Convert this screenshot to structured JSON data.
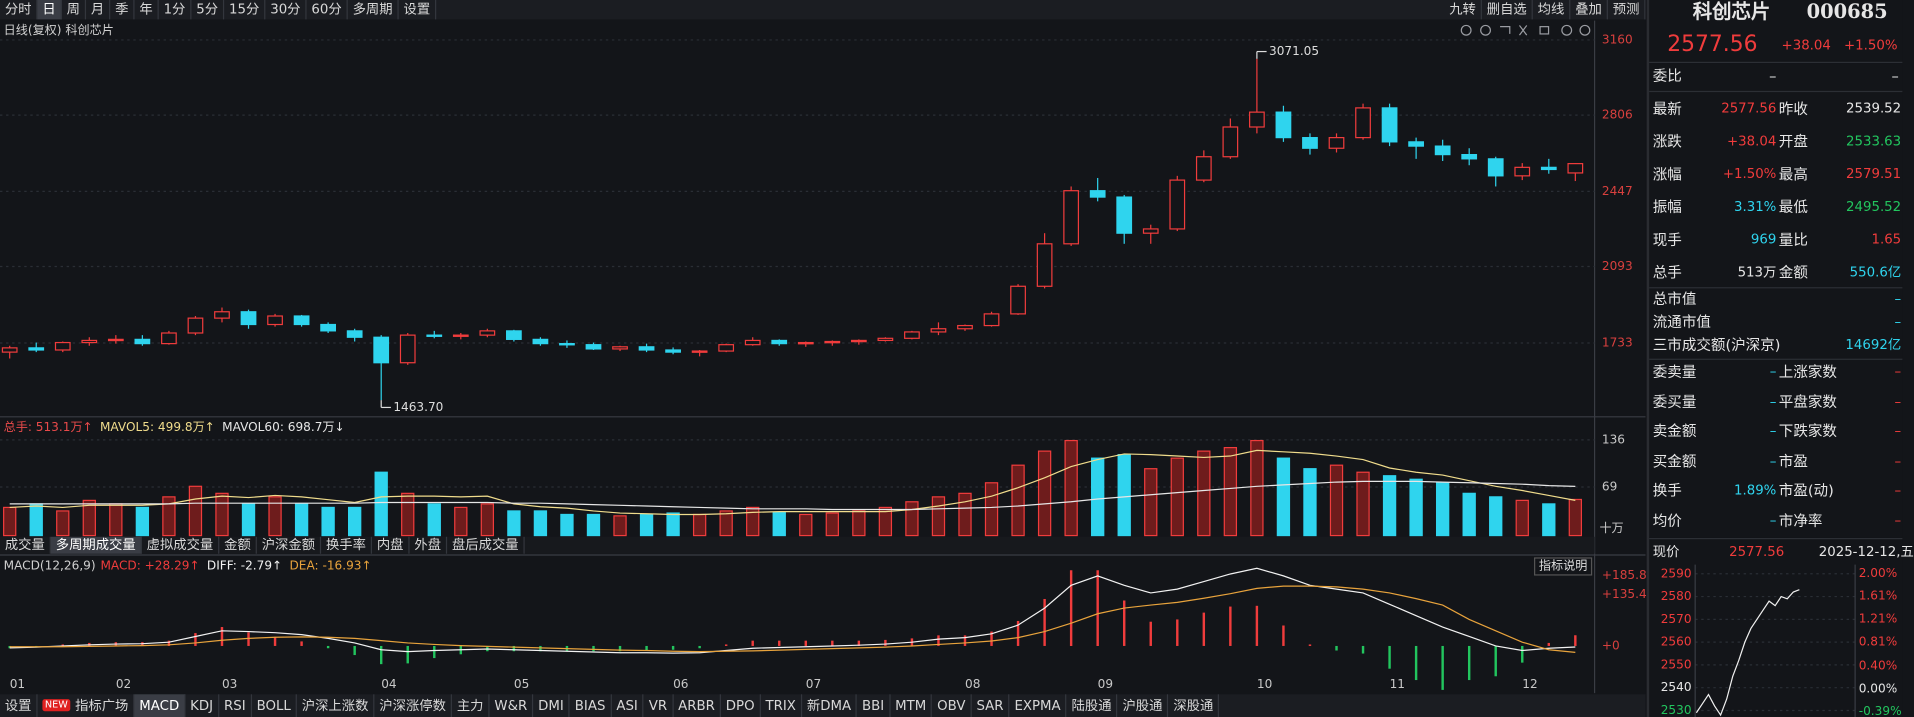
{
  "toolbar": {
    "periods": [
      "分时",
      "日",
      "周",
      "月",
      "季",
      "年",
      "1分",
      "5分",
      "15分",
      "30分",
      "60分",
      "多周期",
      "设置"
    ],
    "tools": [
      "九转",
      "删自选",
      "均线",
      "叠加",
      "预测"
    ]
  },
  "volume_tabs": [
    "成交量",
    "多周期成交量",
    "虚拟成交量",
    "金额",
    "沪深金额",
    "换手率",
    "内盘",
    "外盘",
    "盘后成交量"
  ],
  "indicator_help": "指标说明",
  "indicator_badge": "NEW",
  "indicator_tabs": [
    "设置",
    "指标广场",
    "MACD",
    "KDJ",
    "RSI",
    "BOLL",
    "沪深上涨数",
    "沪深涨停数",
    "主力",
    "W&R",
    "DMI",
    "BIAS",
    "ASI",
    "VR",
    "ARBR",
    "DPO",
    "TRIX",
    "新DMA",
    "BBI",
    "MTM",
    "OBV",
    "SAR",
    "EXPMA",
    "陆股通",
    "沪股通",
    "深股通"
  ],
  "chart_data": [
    {
      "type": "candlestick",
      "title": "日线(复权) 科创芯片",
      "up_color": "#f03c3c",
      "down_color": "#2fd4ee",
      "tick_color": "#d8403e",
      "grid": true,
      "ylim": [
        1391,
        3251
      ],
      "yticks": [
        3160,
        2806,
        2447,
        2093,
        1733
      ],
      "annotations": [
        {
          "label": "3071.05",
          "value": 3071.05
        },
        {
          "label": "1463.70",
          "value": 1463.7
        }
      ],
      "candles": [
        [
          1690,
          1720,
          1660,
          1710
        ],
        [
          1710,
          1735,
          1690,
          1700
        ],
        [
          1700,
          1740,
          1690,
          1735
        ],
        [
          1735,
          1760,
          1720,
          1745
        ],
        [
          1745,
          1770,
          1730,
          1750
        ],
        [
          1750,
          1770,
          1720,
          1730
        ],
        [
          1730,
          1790,
          1725,
          1780
        ],
        [
          1780,
          1860,
          1770,
          1850
        ],
        [
          1850,
          1900,
          1830,
          1880
        ],
        [
          1880,
          1890,
          1800,
          1820
        ],
        [
          1820,
          1870,
          1810,
          1860
        ],
        [
          1860,
          1865,
          1810,
          1820
        ],
        [
          1820,
          1830,
          1780,
          1790
        ],
        [
          1790,
          1800,
          1740,
          1760
        ],
        [
          1760,
          1770,
          1463.7,
          1640
        ],
        [
          1640,
          1780,
          1630,
          1770
        ],
        [
          1770,
          1790,
          1755,
          1765
        ],
        [
          1765,
          1780,
          1750,
          1770
        ],
        [
          1770,
          1800,
          1760,
          1790
        ],
        [
          1790,
          1795,
          1740,
          1750
        ],
        [
          1750,
          1760,
          1720,
          1730
        ],
        [
          1730,
          1745,
          1710,
          1725
        ],
        [
          1725,
          1735,
          1700,
          1705
        ],
        [
          1705,
          1720,
          1695,
          1715
        ],
        [
          1715,
          1730,
          1690,
          1700
        ],
        [
          1700,
          1712,
          1680,
          1690
        ],
        [
          1690,
          1700,
          1670,
          1695
        ],
        [
          1695,
          1730,
          1690,
          1725
        ],
        [
          1725,
          1760,
          1720,
          1745
        ],
        [
          1745,
          1750,
          1720,
          1730
        ],
        [
          1730,
          1740,
          1715,
          1735
        ],
        [
          1735,
          1745,
          1720,
          1740
        ],
        [
          1740,
          1750,
          1725,
          1745
        ],
        [
          1745,
          1760,
          1740,
          1755
        ],
        [
          1755,
          1790,
          1750,
          1785
        ],
        [
          1785,
          1830,
          1770,
          1800
        ],
        [
          1800,
          1820,
          1790,
          1815
        ],
        [
          1815,
          1880,
          1810,
          1870
        ],
        [
          1870,
          2010,
          1865,
          2000
        ],
        [
          2000,
          2250,
          1990,
          2200
        ],
        [
          2200,
          2470,
          2190,
          2450
        ],
        [
          2450,
          2510,
          2400,
          2420
        ],
        [
          2420,
          2430,
          2200,
          2250
        ],
        [
          2250,
          2290,
          2200,
          2270
        ],
        [
          2270,
          2520,
          2260,
          2500
        ],
        [
          2500,
          2640,
          2490,
          2610
        ],
        [
          2610,
          2790,
          2600,
          2750
        ],
        [
          2750,
          3071.05,
          2720,
          2820
        ],
        [
          2820,
          2850,
          2680,
          2700
        ],
        [
          2700,
          2720,
          2620,
          2650
        ],
        [
          2650,
          2720,
          2630,
          2700
        ],
        [
          2700,
          2860,
          2690,
          2840
        ],
        [
          2840,
          2860,
          2660,
          2680
        ],
        [
          2680,
          2700,
          2600,
          2660
        ],
        [
          2660,
          2690,
          2590,
          2620
        ],
        [
          2620,
          2650,
          2570,
          2600
        ],
        [
          2600,
          2610,
          2470,
          2520
        ],
        [
          2520,
          2580,
          2500,
          2560
        ],
        [
          2560,
          2600,
          2530,
          2550
        ],
        [
          2533.63,
          2579.51,
          2495.52,
          2577.56
        ]
      ]
    },
    {
      "type": "bar",
      "unit": "十万",
      "up_color": "#f03c3c",
      "down_color": "#2fd4ee",
      "tick_color": "#c8c8c8",
      "grid": true,
      "ylim": [
        0,
        167
      ],
      "yticks": [
        136,
        69
      ],
      "series": [
        {
          "name": "总手: 513.1万↑",
          "color": "#e84a4a",
          "values": [
            40,
            45,
            35,
            50,
            45,
            40,
            55,
            70,
            60,
            45,
            55,
            45,
            40,
            40,
            90,
            60,
            45,
            40,
            45,
            35,
            35,
            30,
            30,
            28,
            30,
            32,
            30,
            35,
            40,
            33,
            30,
            32,
            35,
            40,
            48,
            55,
            60,
            75,
            100,
            120,
            135,
            110,
            115,
            95,
            110,
            120,
            125,
            135,
            110,
            95,
            100,
            90,
            85,
            80,
            75,
            60,
            55,
            50,
            45,
            51.31
          ]
        },
        {
          "name": "MAVOL5: 499.8万↑",
          "color": "#f0dc8c",
          "values": [
            40,
            42,
            40,
            43,
            43,
            43,
            45,
            52,
            56,
            54,
            57,
            55,
            51,
            47,
            55,
            56,
            56,
            55,
            56,
            45,
            41,
            39,
            35,
            32,
            31,
            30,
            30,
            31,
            33,
            34,
            34,
            34,
            34,
            34,
            37,
            42,
            48,
            56,
            68,
            82,
            98,
            108,
            116,
            115,
            113,
            111,
            113,
            121,
            119,
            117,
            113,
            108,
            96,
            90,
            86,
            78,
            70,
            64,
            57,
            49.98
          ]
        },
        {
          "name": "MAVOL60: 698.7万↓",
          "color": "#e6e6e6",
          "values": [
            45,
            45,
            45,
            45,
            45,
            45,
            45,
            46,
            46,
            46,
            46,
            46,
            46,
            46,
            47,
            47,
            47,
            47,
            47,
            46,
            46,
            45,
            44,
            43,
            42,
            41,
            40,
            39,
            38,
            38,
            38,
            37,
            37,
            37,
            37,
            38,
            39,
            40,
            42,
            45,
            48,
            52,
            55,
            58,
            61,
            64,
            67,
            70,
            72,
            74,
            76,
            77,
            77,
            77,
            76,
            75,
            74,
            73,
            71,
            69.87
          ]
        }
      ]
    },
    {
      "type": "macd",
      "title": "MACD(12,26,9)",
      "up_color": "#f03c3c",
      "down_color": "#22c55e",
      "tick_color": "#d8403e",
      "grid": false,
      "ylim": [
        -118,
        237
      ],
      "yticks": [
        {
          "value": 185.8,
          "label": "+185.8"
        },
        {
          "value": 135.4,
          "label": "+135.4"
        },
        {
          "value": 0,
          "label": "+0"
        }
      ],
      "xticks": [
        {
          "value": 0,
          "label": "01"
        },
        {
          "value": 4,
          "label": "02"
        },
        {
          "value": 8,
          "label": "03"
        },
        {
          "value": 14,
          "label": "04"
        },
        {
          "value": 19,
          "label": "05"
        },
        {
          "value": 25,
          "label": "06"
        },
        {
          "value": 30,
          "label": "07"
        },
        {
          "value": 36,
          "label": "08"
        },
        {
          "value": 41,
          "label": "09"
        },
        {
          "value": 47,
          "label": "10"
        },
        {
          "value": 52,
          "label": "11"
        },
        {
          "value": 57,
          "label": "12"
        }
      ],
      "series": [
        {
          "name": "MACD: +28.29↑",
          "color": "#f03c3c",
          "values": [
            -6,
            -2,
            4,
            8,
            10,
            10,
            14,
            34,
            50,
            36,
            24,
            12,
            -6,
            -24,
            -48,
            -46,
            -32,
            -22,
            -14,
            -14,
            -14,
            -14,
            -14,
            -14,
            -12,
            -10,
            -6,
            4,
            14,
            14,
            14,
            14,
            14,
            16,
            20,
            28,
            28,
            38,
            66,
            124,
            200,
            200,
            120,
            64,
            70,
            88,
            104,
            106,
            54,
            4,
            -12,
            -20,
            -60,
            -90,
            -116,
            -90,
            -80,
            -44,
            8,
            28.29
          ]
        },
        {
          "name": "DIFF: -2.79↑",
          "color": "#f2f2f2",
          "values": [
            -5,
            -3,
            0,
            3,
            5,
            6,
            10,
            25,
            40,
            38,
            35,
            30,
            20,
            8,
            -10,
            -15,
            -12,
            -10,
            -8,
            -10,
            -12,
            -14,
            -16,
            -18,
            -18,
            -19,
            -18,
            -12,
            -6,
            -4,
            -2,
            0,
            2,
            5,
            10,
            18,
            22,
            32,
            55,
            100,
            160,
            185,
            160,
            140,
            150,
            170,
            190,
            205,
            185,
            160,
            150,
            140,
            110,
            80,
            50,
            25,
            0,
            -12,
            -6,
            -2.79
          ]
        },
        {
          "name": "DEA: -16.93↑",
          "color": "#e8a33c",
          "values": [
            -2,
            -2,
            -2,
            -1,
            0,
            1,
            3,
            8,
            15,
            20,
            23,
            24,
            23,
            20,
            14,
            8,
            4,
            1,
            -1,
            -3,
            -5,
            -7,
            -9,
            -11,
            -12,
            -14,
            -15,
            -14,
            -13,
            -11,
            -9,
            -7,
            -5,
            -3,
            0,
            4,
            8,
            13,
            22,
            38,
            60,
            85,
            100,
            108,
            115,
            126,
            138,
            152,
            158,
            158,
            156,
            150,
            140,
            125,
            108,
            70,
            40,
            10,
            -10,
            -16.93
          ]
        }
      ]
    }
  ],
  "panel": {
    "name": "科创芯片",
    "code": "000685",
    "price": "2577.56",
    "change": "+38.04",
    "pct": "+1.50%",
    "orders": {
      "label": "委比",
      "values": [
        "–",
        "–"
      ]
    },
    "stats": [
      [
        "最新",
        "2577.56",
        "昨收",
        "2539.52"
      ],
      [
        "涨跌",
        "+38.04",
        "开盘",
        "2533.63"
      ],
      [
        "涨幅",
        "+1.50%",
        "最高",
        "2579.51"
      ],
      [
        "振幅",
        "3.31%",
        "最低",
        "2495.52"
      ],
      [
        "现手",
        "969",
        "量比",
        "1.65"
      ],
      [
        "总手",
        "513万",
        "金额",
        "550.6亿"
      ]
    ],
    "caps": [
      [
        "总市值",
        "–"
      ],
      [
        "流通市值",
        "–"
      ],
      [
        "三市成交额(沪深京)",
        "14692亿"
      ]
    ],
    "breadth": [
      [
        "委卖量",
        "–",
        "上涨家数",
        "–"
      ],
      [
        "委买量",
        "–",
        "平盘家数",
        "–"
      ],
      [
        "卖金额",
        "–",
        "下跌家数",
        "–"
      ],
      [
        "买金额",
        "–",
        "市盈",
        "–"
      ],
      [
        "换手",
        "1.89%",
        "市盈(动)",
        "–"
      ],
      [
        "均价",
        "–",
        "市净率",
        "–"
      ]
    ],
    "mini": {
      "type": "line",
      "label": "现价",
      "price": "2577.56",
      "date": "2025-12-12,五",
      "color": "#f0f0f0",
      "ylim": [
        2527,
        2594
      ],
      "yticks": [
        2590,
        2580,
        2570,
        2560,
        2550,
        2540,
        2530
      ],
      "y2lim": [
        -0.49,
        2.15
      ],
      "y2ticks": [
        {
          "value": 2.0,
          "label": "2.00%"
        },
        {
          "value": 1.61,
          "label": "1.61%"
        },
        {
          "value": 1.21,
          "label": "1.21%"
        },
        {
          "value": 0.81,
          "label": "0.81%"
        },
        {
          "value": 0.4,
          "label": "0.40%"
        },
        {
          "value": 0,
          "label": "0.00%"
        },
        {
          "value": -0.39,
          "label": "-0.39%"
        }
      ],
      "values": [
        2529,
        2533,
        2537,
        2532,
        2528,
        2535,
        2545,
        2552,
        2560,
        2566,
        2570,
        2574,
        2578,
        2576,
        2580,
        2579,
        2582,
        2583
      ]
    }
  }
}
